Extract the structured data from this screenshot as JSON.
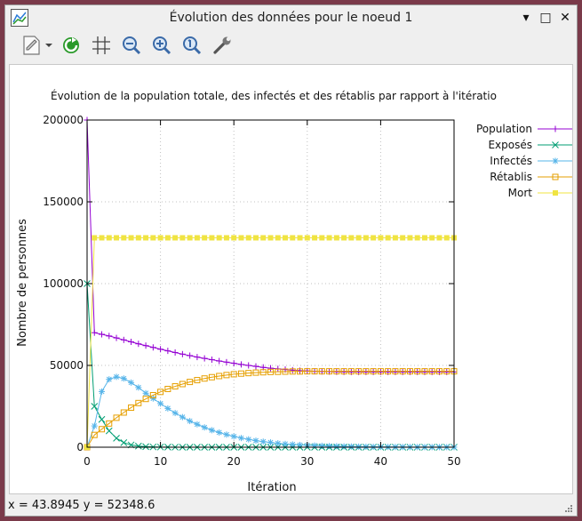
{
  "window": {
    "title": "Évolution des données pour le noeud 1",
    "minimize_glyph": "▾",
    "maximize_glyph": "□",
    "close_glyph": "✕"
  },
  "toolbar": {
    "icons": [
      "export-icon",
      "replot-icon",
      "grid-icon",
      "zoom-out-icon",
      "zoom-in-icon",
      "zoom-reset-icon",
      "settings-wrench-icon"
    ]
  },
  "status": {
    "coords": "x = 43.8945 y = 52348.6"
  },
  "colors": {
    "population": "#9400d3",
    "exposes": "#009e73",
    "infectes": "#56b4e9",
    "retablis": "#e69f00",
    "mort": "#f0e442",
    "grid": "#c0c0c0"
  },
  "chart_data": {
    "type": "line",
    "title": "Évolution de la population totale, des infectés et des rétablis par rapport à l'itération",
    "xlabel": "Itération",
    "ylabel": "Nombre de personnes",
    "xlim": [
      0,
      50
    ],
    "ylim": [
      0,
      200000
    ],
    "xticks": [
      "0",
      "10",
      "20",
      "30",
      "40",
      "50"
    ],
    "yticks": [
      "0",
      "50000",
      "100000",
      "150000",
      "200000"
    ],
    "grid": true,
    "legend_position": "right",
    "x": [
      0,
      1,
      2,
      3,
      4,
      5,
      6,
      7,
      8,
      9,
      10,
      11,
      12,
      13,
      14,
      15,
      16,
      17,
      18,
      19,
      20,
      21,
      22,
      23,
      24,
      25,
      26,
      27,
      28,
      29,
      30,
      31,
      32,
      33,
      34,
      35,
      36,
      37,
      38,
      39,
      40,
      41,
      42,
      43,
      44,
      45,
      46,
      47,
      48,
      49,
      50
    ],
    "series": [
      {
        "name": "Population",
        "marker": "plus",
        "values": [
          200000,
          70000,
          69000,
          68000,
          66800,
          65600,
          64400,
          63200,
          62100,
          61000,
          59900,
          58900,
          57900,
          56900,
          56000,
          55100,
          54300,
          53500,
          52700,
          52000,
          51300,
          50600,
          50000,
          49400,
          48800,
          48300,
          47900,
          47500,
          47100,
          46800,
          46600,
          46400,
          46300,
          46200,
          46100,
          46050,
          46000,
          46000,
          46000,
          46000,
          46000,
          46000,
          46000,
          46000,
          46000,
          46000,
          46000,
          46000,
          46000,
          46000,
          46000
        ]
      },
      {
        "name": "Exposés",
        "marker": "x",
        "values": [
          100000,
          25000,
          17000,
          10000,
          5500,
          2800,
          1400,
          700,
          350,
          180,
          100,
          50,
          30,
          15,
          10,
          5,
          0,
          0,
          0,
          0,
          0,
          0,
          0,
          0,
          0,
          0,
          0,
          0,
          0,
          0,
          0,
          0,
          0,
          0,
          0,
          0,
          0,
          0,
          0,
          0,
          0,
          0,
          0,
          0,
          0,
          0,
          0,
          0,
          0,
          0,
          0
        ]
      },
      {
        "name": "Infectés",
        "marker": "star",
        "values": [
          0,
          13000,
          34000,
          41500,
          43000,
          42000,
          39500,
          36500,
          33000,
          29800,
          26700,
          23700,
          20900,
          18400,
          16000,
          14000,
          12100,
          10400,
          9000,
          7700,
          6600,
          5600,
          4800,
          4000,
          3400,
          2900,
          2400,
          2000,
          1700,
          1400,
          1200,
          1000,
          850,
          700,
          600,
          500,
          420,
          350,
          290,
          240,
          200,
          170,
          140,
          120,
          100,
          80,
          70,
          60,
          50,
          40,
          35
        ]
      },
      {
        "name": "Rétablis",
        "marker": "square",
        "values": [
          0,
          7500,
          11000,
          14500,
          18000,
          21200,
          24200,
          27000,
          29500,
          31800,
          33800,
          35600,
          37200,
          38600,
          39900,
          41000,
          42000,
          42800,
          43500,
          44100,
          44600,
          45000,
          45300,
          45600,
          45800,
          46000,
          46100,
          46200,
          46300,
          46300,
          46400,
          46400,
          46400,
          46400,
          46400,
          46400,
          46400,
          46400,
          46400,
          46400,
          46400,
          46400,
          46400,
          46400,
          46400,
          46400,
          46400,
          46400,
          46400,
          46400,
          46400
        ]
      },
      {
        "name": "Mort",
        "marker": "filled-square",
        "values": [
          0,
          128000,
          128000,
          128000,
          128000,
          128000,
          128000,
          128000,
          128000,
          128000,
          128000,
          128000,
          128000,
          128000,
          128000,
          128000,
          128000,
          128000,
          128000,
          128000,
          128000,
          128000,
          128000,
          128000,
          128000,
          128000,
          128000,
          128000,
          128000,
          128000,
          128000,
          128000,
          128000,
          128000,
          128000,
          128000,
          128000,
          128000,
          128000,
          128000,
          128000,
          128000,
          128000,
          128000,
          128000,
          128000,
          128000,
          128000,
          128000,
          128000,
          128000
        ]
      }
    ]
  }
}
